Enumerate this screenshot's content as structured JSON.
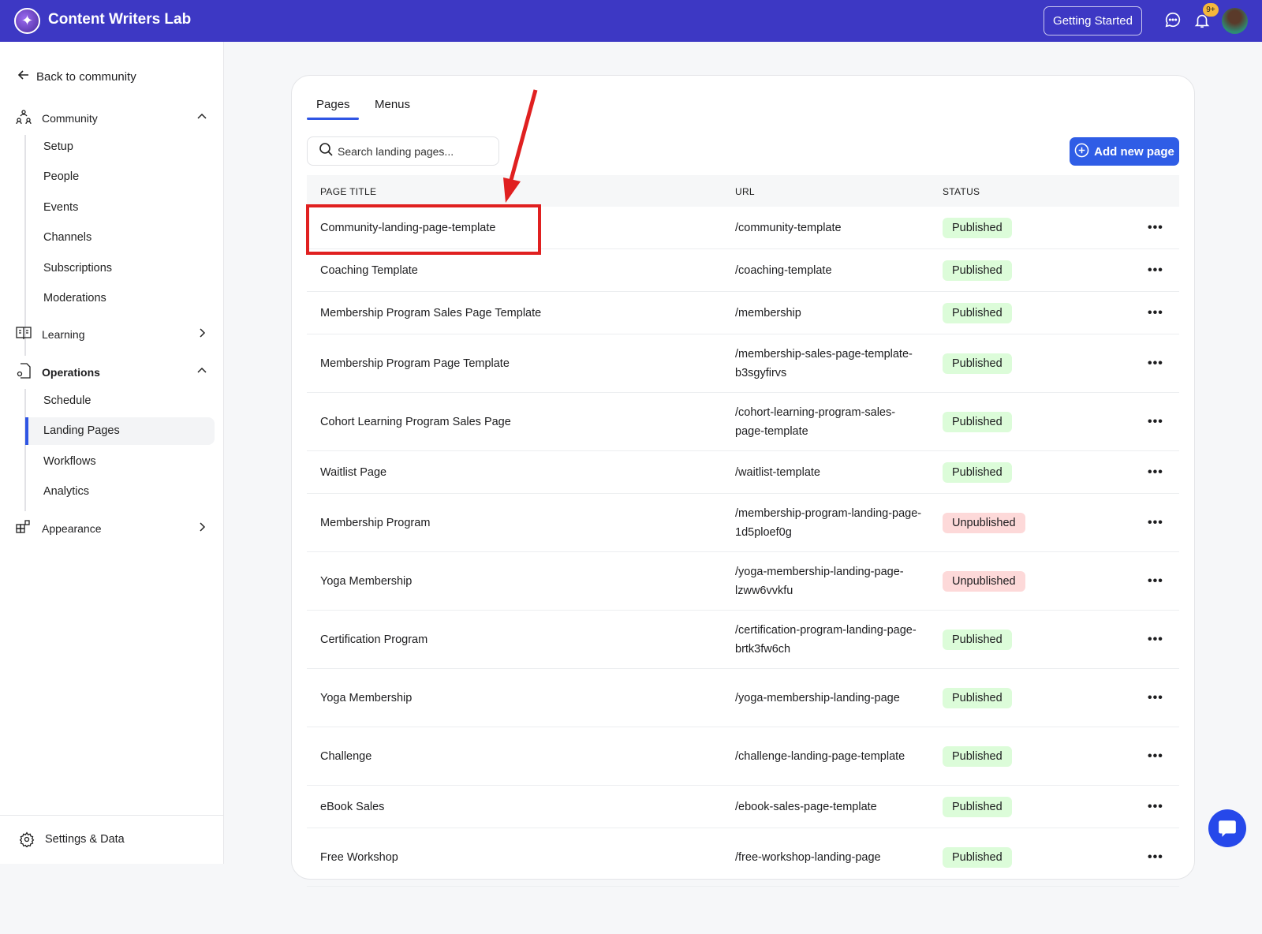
{
  "app": {
    "title": "Content Writers Lab",
    "getting_started": "Getting Started",
    "notif_count": "9+"
  },
  "sidebar": {
    "back": "Back to community",
    "sections": [
      {
        "label": "Community",
        "items": [
          "Setup",
          "People",
          "Events",
          "Channels",
          "Subscriptions",
          "Moderations"
        ]
      },
      {
        "label": "Learning"
      },
      {
        "label": "Operations",
        "items": [
          "Schedule",
          "Landing Pages",
          "Workflows",
          "Analytics"
        ]
      },
      {
        "label": "Appearance"
      }
    ],
    "active_item": "Landing Pages",
    "footer": "Settings & Data"
  },
  "main": {
    "tabs": [
      "Pages",
      "Menus"
    ],
    "active_tab": "Pages",
    "search_placeholder": "Search landing pages...",
    "add_button": "Add new page",
    "columns": [
      "PAGE TITLE",
      "URL",
      "STATUS"
    ],
    "rows": [
      {
        "title": "Community-landing-page-template",
        "url": "/community-template",
        "status": "Published"
      },
      {
        "title": "Coaching Template",
        "url": "/coaching-template",
        "status": "Published"
      },
      {
        "title": "Membership Program Sales Page Template",
        "url": "/membership",
        "status": "Published"
      },
      {
        "title": "Membership Program Page Template",
        "url": "/membership-sales-page-template-b3sgyfirvs",
        "status": "Published"
      },
      {
        "title": "Cohort Learning Program Sales Page",
        "url": "/cohort-learning-program-sales-page-template",
        "status": "Published"
      },
      {
        "title": "Waitlist Page",
        "url": "/waitlist-template",
        "status": "Published"
      },
      {
        "title": "Membership Program",
        "url": "/membership-program-landing-page-1d5ploef0g",
        "status": "Unpublished"
      },
      {
        "title": "Yoga Membership",
        "url": "/yoga-membership-landing-page-lzww6vvkfu",
        "status": "Unpublished"
      },
      {
        "title": "Certification Program",
        "url": "/certification-program-landing-page-brtk3fw6ch",
        "status": "Published"
      },
      {
        "title": "Yoga Membership",
        "url": "/yoga-membership-landing-page",
        "status": "Published"
      },
      {
        "title": "Challenge",
        "url": "/challenge-landing-page-template",
        "status": "Published"
      },
      {
        "title": "eBook Sales",
        "url": "/ebook-sales-page-template",
        "status": "Published"
      },
      {
        "title": "Free Workshop",
        "url": "/free-workshop-landing-page",
        "status": "Published"
      }
    ]
  },
  "colors": {
    "header": "#3d38c4",
    "accent": "#2f5de6",
    "published_bg": "#dcfcd9",
    "unpublished_bg": "#fdd9d9",
    "annotation": "#e02020"
  }
}
